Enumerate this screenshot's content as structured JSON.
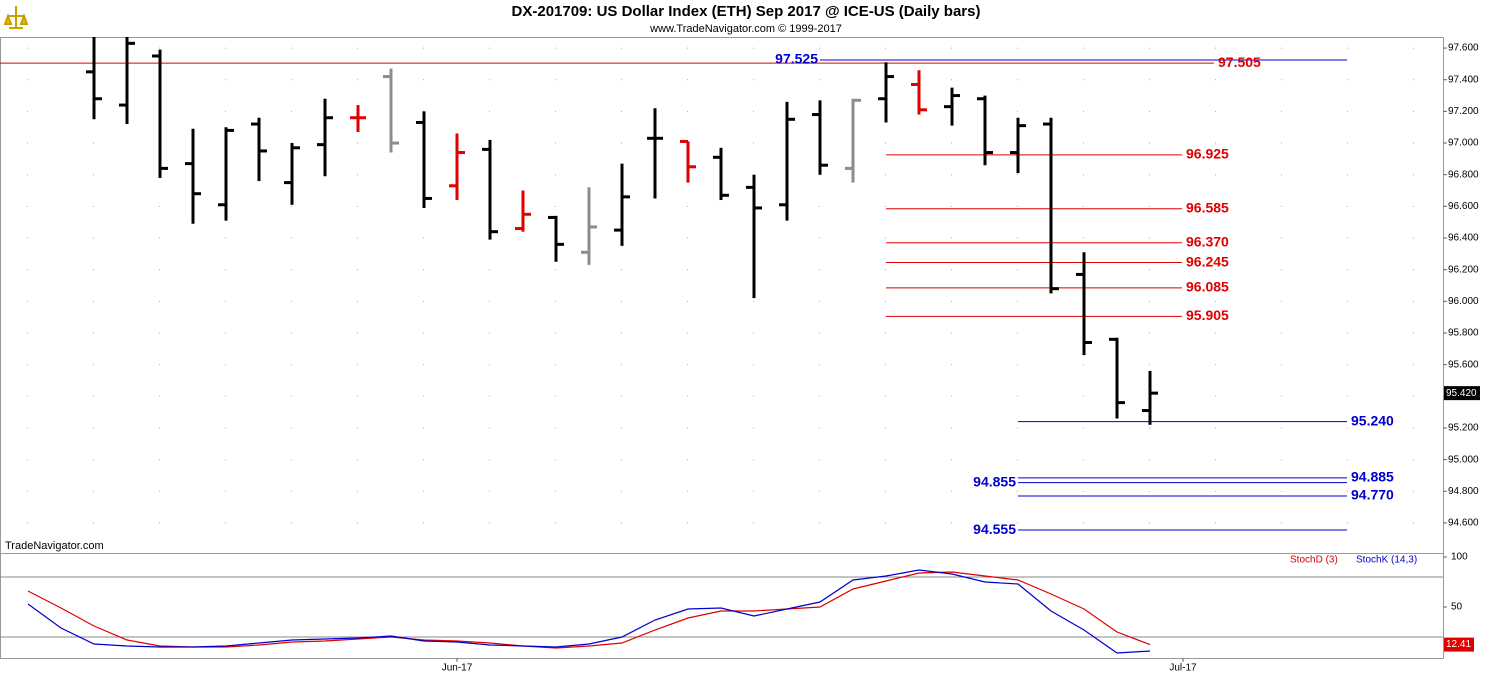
{
  "chart_data": {
    "type": "ohlc",
    "title": "DX-201709:  US Dollar Index (ETH) Sep 2017 @ ICE-US  (Daily bars)",
    "subtitle": "www.TradeNavigator.com © 1999-2017",
    "watermark": "TradeNavigator.com",
    "categories": [
      null,
      null,
      null,
      null,
      null,
      null,
      null,
      null,
      null,
      null,
      null,
      null,
      null,
      "Jun-17",
      null,
      null,
      null,
      null,
      null,
      null,
      null,
      null,
      null,
      null,
      null,
      null,
      null,
      null,
      null,
      null,
      null,
      null,
      null,
      null,
      null,
      "Jul-17"
    ],
    "opens": [
      null,
      null,
      97.45,
      97.24,
      97.55,
      96.87,
      96.61,
      97.12,
      96.75,
      96.99,
      97.16,
      97.42,
      97.13,
      96.73,
      96.96,
      96.46,
      96.53,
      96.31,
      96.45,
      97.03,
      97.01,
      96.91,
      96.72,
      96.61,
      97.18,
      96.84,
      97.28,
      97.37,
      97.23,
      97.28,
      96.94,
      97.12,
      96.17,
      95.76,
      95.31,
      null
    ],
    "highs": [
      null,
      null,
      97.75,
      97.75,
      97.59,
      97.09,
      97.1,
      97.16,
      97.0,
      97.28,
      97.24,
      97.47,
      97.2,
      97.06,
      97.02,
      96.7,
      96.54,
      96.72,
      96.87,
      97.22,
      97.01,
      96.97,
      96.8,
      97.26,
      97.27,
      97.28,
      97.51,
      97.46,
      97.35,
      97.3,
      97.16,
      97.16,
      96.31,
      95.77,
      95.56,
      null
    ],
    "lows": [
      null,
      null,
      97.15,
      97.12,
      96.78,
      96.49,
      96.51,
      96.76,
      96.61,
      96.79,
      97.07,
      96.94,
      96.59,
      96.64,
      96.39,
      96.44,
      96.25,
      96.23,
      96.35,
      96.65,
      96.75,
      96.64,
      96.02,
      96.51,
      96.8,
      96.75,
      97.13,
      97.18,
      97.11,
      96.86,
      96.81,
      96.05,
      95.66,
      95.26,
      95.22,
      null
    ],
    "closes": [
      null,
      null,
      97.28,
      97.63,
      96.84,
      96.68,
      97.08,
      96.95,
      96.97,
      97.16,
      97.16,
      97.0,
      96.65,
      96.94,
      96.44,
      96.55,
      96.36,
      96.47,
      96.66,
      97.03,
      96.85,
      96.67,
      96.59,
      97.15,
      96.86,
      97.27,
      97.42,
      97.21,
      97.3,
      96.94,
      97.11,
      96.08,
      95.74,
      95.36,
      95.42,
      null
    ],
    "close_label": "95.420",
    "bar_colors": [
      null,
      null,
      "#000000",
      "#000000",
      "#000000",
      "#000000",
      "#000000",
      "#000000",
      "#000000",
      "#000000",
      "#e00000",
      "#8c8c8c",
      "#000000",
      "#e00000",
      "#000000",
      "#e00000",
      "#000000",
      "#8c8c8c",
      "#000000",
      "#000000",
      "#e00000",
      "#000000",
      "#000000",
      "#000000",
      "#000000",
      "#8c8c8c",
      "#000000",
      "#e00000",
      "#000000",
      "#000000",
      "#000000",
      "#000000",
      "#000000",
      "#000000",
      "#000000",
      null
    ],
    "ylim": [
      94.41,
      97.67
    ],
    "yticks": [
      {
        "value": 94.6,
        "label": "94.600"
      },
      {
        "value": 94.8,
        "label": "94.800"
      },
      {
        "value": 95.0,
        "label": "95.000"
      },
      {
        "value": 95.2,
        "label": "95.200"
      },
      {
        "value": 95.4,
        "label": "95.400"
      },
      {
        "value": 95.6,
        "label": "95.600"
      },
      {
        "value": 95.8,
        "label": "95.800"
      },
      {
        "value": 96.0,
        "label": "96.000"
      },
      {
        "value": 96.2,
        "label": "96.200"
      },
      {
        "value": 96.4,
        "label": "96.400"
      },
      {
        "value": 96.6,
        "label": "96.600"
      },
      {
        "value": 96.8,
        "label": "96.800"
      },
      {
        "value": 97.0,
        "label": "97.000"
      },
      {
        "value": 97.2,
        "label": "97.200"
      },
      {
        "value": 97.4,
        "label": "97.400"
      },
      {
        "value": 97.6,
        "label": "97.600"
      }
    ],
    "grid": true,
    "levels": [
      {
        "color": "#e00000",
        "values": [
          97.505,
          96.925,
          96.585,
          96.37,
          96.245,
          96.085,
          95.905
        ],
        "value_labels": [
          "97.505",
          "96.925",
          "96.585",
          "96.370",
          "96.245",
          "96.085",
          "95.905"
        ]
      },
      {
        "color": "#0000cc",
        "values": [
          97.525,
          95.24,
          94.885,
          94.855,
          94.77,
          94.555
        ],
        "value_labels": [
          "97.525",
          "95.240",
          "94.885",
          "94.855",
          "94.770",
          "94.555"
        ]
      }
    ],
    "indicator": {
      "type": "line",
      "ylim": [
        -1,
        104
      ],
      "yticks": [
        50,
        100
      ],
      "bands": [
        20,
        80
      ],
      "series": [
        {
          "name": "StochD (3)",
          "color": "#e00000",
          "values": [
            66,
            49,
            31,
            17,
            11,
            10,
            10,
            12,
            15,
            16,
            18,
            20,
            17,
            16,
            14,
            11,
            9,
            11,
            14,
            27,
            39,
            46,
            46,
            48,
            50,
            68,
            76,
            84,
            85,
            81,
            77,
            63,
            48,
            25,
            12.41,
            null
          ]
        },
        {
          "name": "StochK (14,3)",
          "color": "#0000cc",
          "values": [
            53,
            29,
            13,
            11,
            10,
            10,
            11,
            14,
            17,
            18,
            19,
            21,
            16,
            15,
            12,
            11,
            10,
            13,
            20,
            37,
            48,
            49,
            41,
            48,
            55,
            77,
            81,
            87,
            83,
            75,
            73,
            46,
            27,
            4,
            6,
            null
          ]
        }
      ]
    }
  }
}
